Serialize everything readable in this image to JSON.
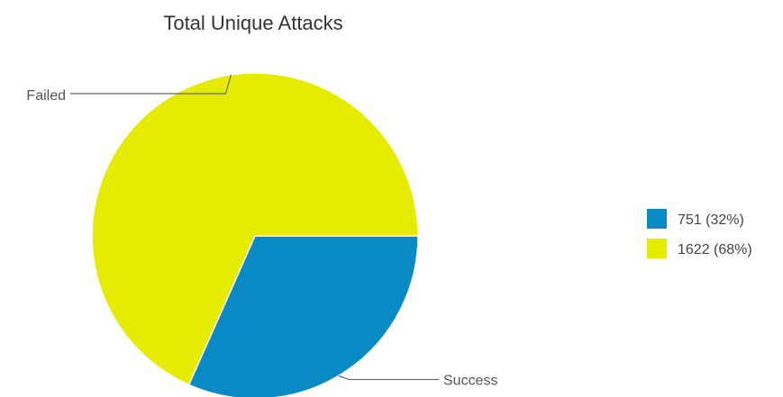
{
  "chart_data": {
    "type": "pie",
    "title": "Total Unique Attacks",
    "slices": [
      {
        "label": "Success",
        "value": 751,
        "percent": 32,
        "legend": "751 (32%)",
        "color": "#0a8ac4"
      },
      {
        "label": "Failed",
        "value": 1622,
        "percent": 68,
        "legend": "1622 (68%)",
        "color": "#e6ec00"
      }
    ],
    "legend_position": "right",
    "start_angle_degrees": 0,
    "direction": "clockwise"
  }
}
